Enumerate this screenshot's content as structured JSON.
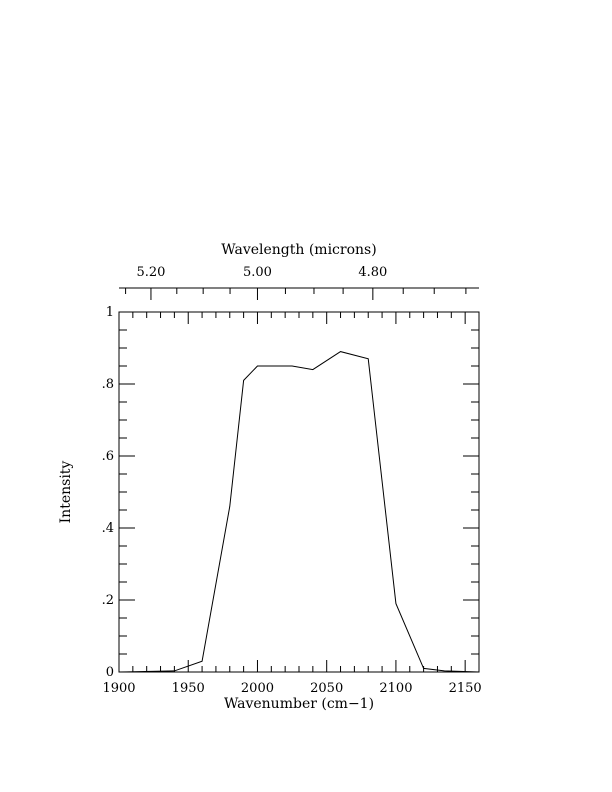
{
  "chart_data": {
    "type": "line",
    "xlabel": "Wavenumber (cm−1)",
    "ylabel": "Intensity",
    "top_axis_label": "Wavelength (microns)",
    "xlim": [
      1900,
      2160
    ],
    "ylim": [
      0,
      1
    ],
    "x_ticks": [
      1900,
      1950,
      2000,
      2050,
      2100,
      2150
    ],
    "x_tick_labels": [
      "1900",
      "1950",
      "2000",
      "2050",
      "2100",
      "2150"
    ],
    "y_ticks": [
      0,
      0.2,
      0.4,
      0.6,
      0.8,
      1
    ],
    "y_tick_labels": [
      "0",
      ".2",
      ".4",
      ".6",
      ".8",
      "1"
    ],
    "top_ticks": [
      5.2,
      5.0,
      4.8
    ],
    "top_tick_labels": [
      "5.20",
      "5.00",
      "4.80"
    ],
    "grid": false,
    "line_color": "#000000",
    "series": [
      {
        "x": [
          1900,
          1940,
          1960,
          1980,
          1990,
          2000,
          2025,
          2040,
          2060,
          2080,
          2100,
          2120,
          2135,
          2160
        ],
        "y": [
          0.0,
          0.003,
          0.03,
          0.46,
          0.81,
          0.85,
          0.85,
          0.84,
          0.89,
          0.87,
          0.19,
          0.01,
          0.003,
          0.0
        ]
      }
    ]
  }
}
